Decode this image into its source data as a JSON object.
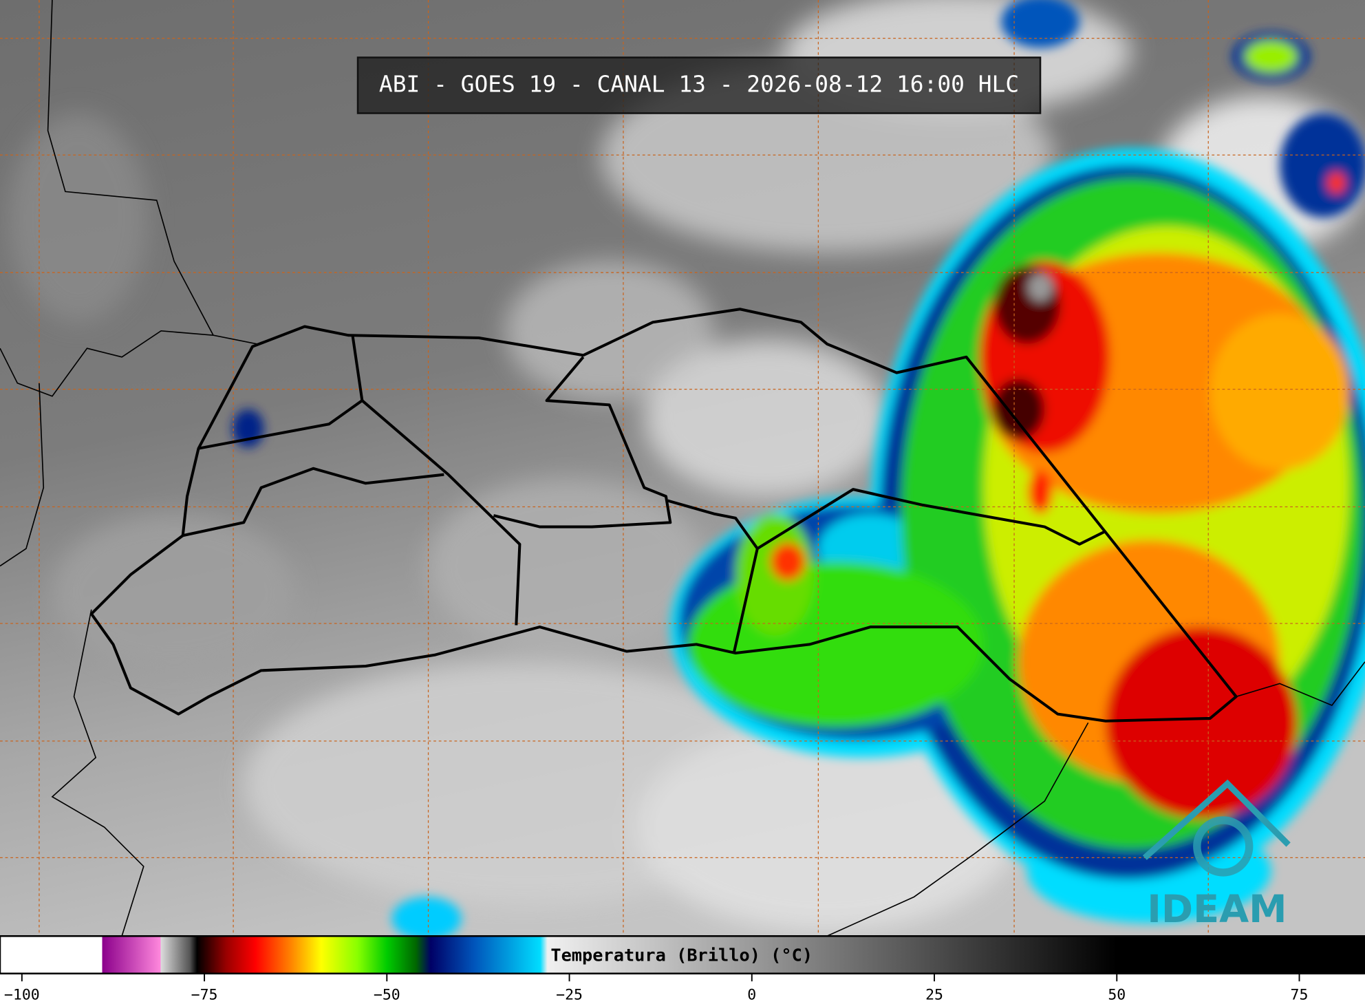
{
  "header": {
    "title": "ABI - GOES 19 - CANAL 13 - 2026-08-12 16:00 HLC"
  },
  "colorbar": {
    "label": "Temperatura (Brillo) (°C)",
    "lim": [
      -103,
      84
    ],
    "ticks": [
      {
        "value": -100,
        "label": "−100"
      },
      {
        "value": -75,
        "label": "−75"
      },
      {
        "value": -50,
        "label": "−50"
      },
      {
        "value": -25,
        "label": "−25"
      },
      0,
      25,
      50,
      75
    ],
    "stops": [
      {
        "value": -103,
        "color": "#ffffff"
      },
      {
        "value": -89,
        "color": "#ffffff"
      },
      {
        "value": -89,
        "color": "#8b008b"
      },
      {
        "value": -81,
        "color": "#ff88dd"
      },
      {
        "value": -81,
        "color": "#dddddd"
      },
      {
        "value": -77,
        "color": "#555555"
      },
      {
        "value": -76,
        "color": "#000000"
      },
      {
        "value": -72,
        "color": "#990000"
      },
      {
        "value": -68,
        "color": "#ff0000"
      },
      {
        "value": -63,
        "color": "#ff8800"
      },
      {
        "value": -59,
        "color": "#ffff00"
      },
      {
        "value": -54,
        "color": "#88ff00"
      },
      {
        "value": -50,
        "color": "#00cc00"
      },
      {
        "value": -46,
        "color": "#006600"
      },
      {
        "value": -44,
        "color": "#000066"
      },
      {
        "value": -38,
        "color": "#0055bb"
      },
      {
        "value": -29,
        "color": "#00ddff"
      },
      {
        "value": -28,
        "color": "#f0f0f0"
      },
      {
        "value": 50,
        "color": "#000000"
      },
      {
        "value": 84,
        "color": "#000000"
      }
    ]
  },
  "logo": {
    "text": "IDEAM"
  }
}
